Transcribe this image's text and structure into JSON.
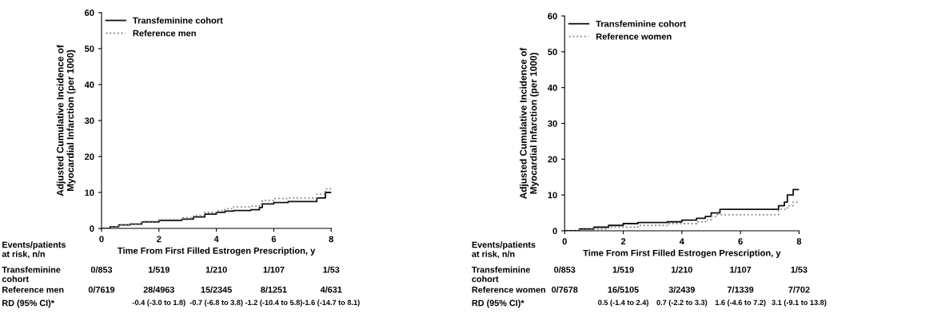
{
  "chart_data": [
    {
      "type": "step",
      "xlabel": "Time From First Filled Estrogen Prescription, y",
      "ylabel": "Adjusted Cumulative Incidence of\nMyocardial Infarction (per 1000)",
      "xlim": [
        0,
        8
      ],
      "xticks": [
        0,
        2,
        4,
        6,
        8
      ],
      "ylim": [
        0,
        60
      ],
      "yticks": [
        0,
        10,
        20,
        30,
        40,
        50,
        60
      ],
      "legend": "top left",
      "grid": false,
      "series": [
        {
          "name": "Transfeminine cohort",
          "color": "#111111",
          "line_style": "solid",
          "x": [
            0,
            0.3,
            0.6,
            1.0,
            1.4,
            2.0,
            2.8,
            3.2,
            3.6,
            4.0,
            4.3,
            4.6,
            5.2,
            5.5,
            5.6,
            6.0,
            6.5,
            7.5,
            7.8,
            8.0
          ],
          "values": [
            0,
            0.5,
            1.0,
            1.2,
            1.8,
            2.2,
            2.6,
            3.2,
            4.0,
            4.5,
            4.8,
            5.0,
            5.2,
            5.8,
            6.8,
            7.2,
            7.5,
            8.5,
            10.0,
            10.0
          ]
        },
        {
          "name": "Reference men",
          "color": "#888888",
          "line_style": "dotted",
          "x": [
            0,
            0.3,
            0.6,
            1.0,
            1.4,
            2.0,
            2.8,
            3.2,
            3.6,
            4.0,
            4.3,
            4.6,
            5.2,
            5.5,
            5.6,
            6.0,
            6.5,
            7.5,
            7.8,
            8.0
          ],
          "values": [
            0,
            0.5,
            1.0,
            1.3,
            2.0,
            2.5,
            3.0,
            3.6,
            4.5,
            5.0,
            5.5,
            6.0,
            6.2,
            6.8,
            7.8,
            8.3,
            8.5,
            9.5,
            11.0,
            11.0
          ]
        }
      ],
      "annotations": [
        "Events/patients\nat risk, n/n",
        "Transfeminine\ncohort",
        "0/853",
        "1/519",
        "1/210",
        "1/107",
        "1/53",
        "Reference men",
        "0/7619",
        "28/4963",
        "15/2345",
        "8/1251",
        "4/631",
        "RD (95% CI)*",
        "-0.4 (-3.0 to 1.8)",
        "-0.7 (-6.8 to 3.8)",
        "-1.2 (-10.4 to 5.8)",
        "-1.6 (-14.7 to 8.1)"
      ]
    },
    {
      "type": "step",
      "xlabel": "Time From First Filled Estrogen Prescription, y",
      "ylabel": "Adjusted Cumulative Incidence of\nMyocardial Infarction (per 1000)",
      "xlim": [
        0,
        8
      ],
      "xticks": [
        0,
        2,
        4,
        6,
        8
      ],
      "ylim": [
        0,
        60
      ],
      "yticks": [
        0,
        10,
        20,
        30,
        40,
        50,
        60
      ],
      "legend": "top left",
      "grid": false,
      "series": [
        {
          "name": "Transfeminine cohort",
          "color": "#111111",
          "line_style": "solid",
          "x": [
            0,
            0.5,
            1.0,
            1.5,
            2.0,
            2.5,
            3.5,
            4.0,
            4.5,
            4.8,
            5.0,
            5.3,
            7.0,
            7.3,
            7.5,
            7.6,
            7.8,
            8.0
          ],
          "values": [
            0,
            0.5,
            1.0,
            1.5,
            2.0,
            2.3,
            2.5,
            3.0,
            3.5,
            4.0,
            5.0,
            6.0,
            6.0,
            7.0,
            8.0,
            10.0,
            11.5,
            11.5
          ]
        },
        {
          "name": "Reference women",
          "color": "#888888",
          "line_style": "dotted",
          "x": [
            0,
            0.5,
            1.0,
            1.5,
            2.5,
            3.5,
            4.5,
            4.8,
            5.0,
            5.2,
            7.0,
            7.3,
            7.6,
            7.8,
            8.0
          ],
          "values": [
            0,
            0.3,
            0.5,
            1.0,
            1.5,
            2.0,
            2.5,
            3.0,
            4.0,
            4.5,
            4.5,
            6.0,
            7.0,
            8.0,
            8.0
          ]
        }
      ],
      "annotations": [
        "Events/patients\nat risk, n/n",
        "Transfeminine\ncohort",
        "0/853",
        "1/519",
        "1/210",
        "1/107",
        "1/53",
        "Reference women",
        "0/7678",
        "16/5105",
        "3/2439",
        "7/1339",
        "7/702",
        "RD (95% CI)*",
        "0.5 (-1.4 to 2.4)",
        "0.7 (-2.2 to 3.3)",
        "1.6 (-4.6 to 7.2)",
        "3.1 (-9.1 to 13.8)"
      ]
    }
  ]
}
